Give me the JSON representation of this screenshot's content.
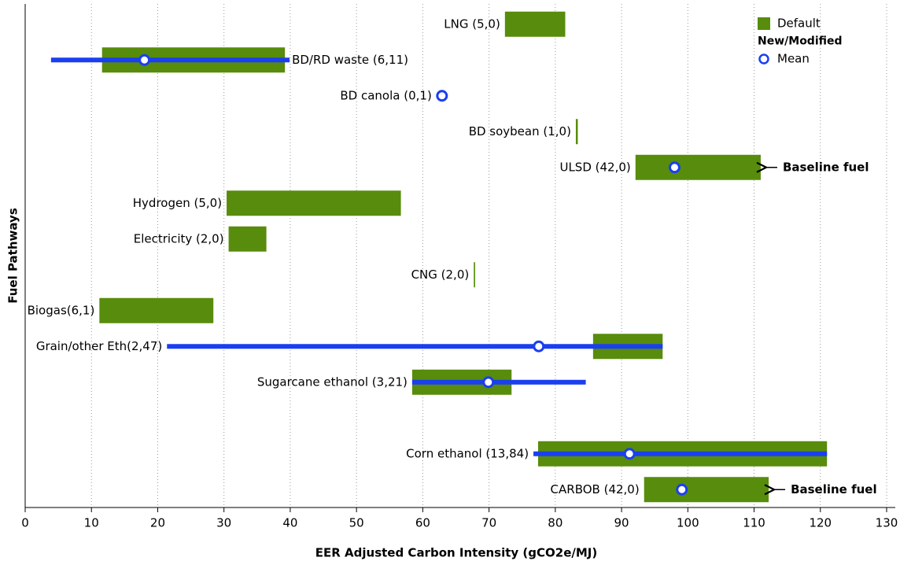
{
  "chart_data": {
    "type": "range",
    "x_label": "EER Adjusted Carbon Intensity (gCO2e/MJ)",
    "y_label": "Fuel Pathways",
    "categories": [
      "LNG (5,0)",
      "BD/RD waste (6,11)",
      "BD canola (0,1)",
      "BD soybean (1,0)",
      "ULSD (42,0)",
      "Hydrogen (5,0)",
      "Electricity (2,0)",
      "CNG (2,0)",
      "Biogas(6,1)",
      "Grain/other Eth(2,47)",
      "Sugarcane ethanol (3,21)",
      null,
      "Corn ethanol (13,84)",
      "CARBOB (42,0)"
    ],
    "series": [
      {
        "name": "Default",
        "color": "#588c0c",
        "marker": "square",
        "low": [
          72.4,
          11.6,
          null,
          83.1,
          92.1,
          30.4,
          30.7,
          67.7,
          11.2,
          85.7,
          58.4,
          null,
          77.4,
          93.4
        ],
        "high": [
          81.5,
          39.2,
          null,
          83.4,
          111.0,
          56.7,
          36.4,
          67.9,
          28.4,
          96.2,
          73.4,
          null,
          121.0,
          112.2
        ]
      },
      {
        "name": "New/Modified",
        "color": "#1a3ff0",
        "marker": "none",
        "low": [
          null,
          3.9,
          null,
          null,
          null,
          null,
          null,
          null,
          null,
          21.4,
          58.4,
          null,
          76.7,
          null
        ],
        "high": [
          null,
          39.9,
          null,
          null,
          null,
          null,
          null,
          null,
          null,
          96.2,
          84.6,
          null,
          121.0,
          null
        ]
      },
      {
        "name": "Mean",
        "color": "#1a3ff0",
        "marker": "circle",
        "values": [
          null,
          18.0,
          62.9,
          null,
          98.0,
          null,
          null,
          null,
          null,
          77.5,
          69.9,
          null,
          91.2,
          99.1
        ]
      }
    ],
    "annotations": [
      {
        "row": 4,
        "text": "Baseline fuel"
      },
      {
        "row": 13,
        "text": "Baseline fuel"
      }
    ],
    "xlim": [
      0,
      130
    ],
    "xticks": [
      0,
      10,
      20,
      30,
      40,
      50,
      60,
      70,
      80,
      90,
      100,
      110,
      120,
      130
    ],
    "grid": true,
    "legend": "top-right"
  }
}
